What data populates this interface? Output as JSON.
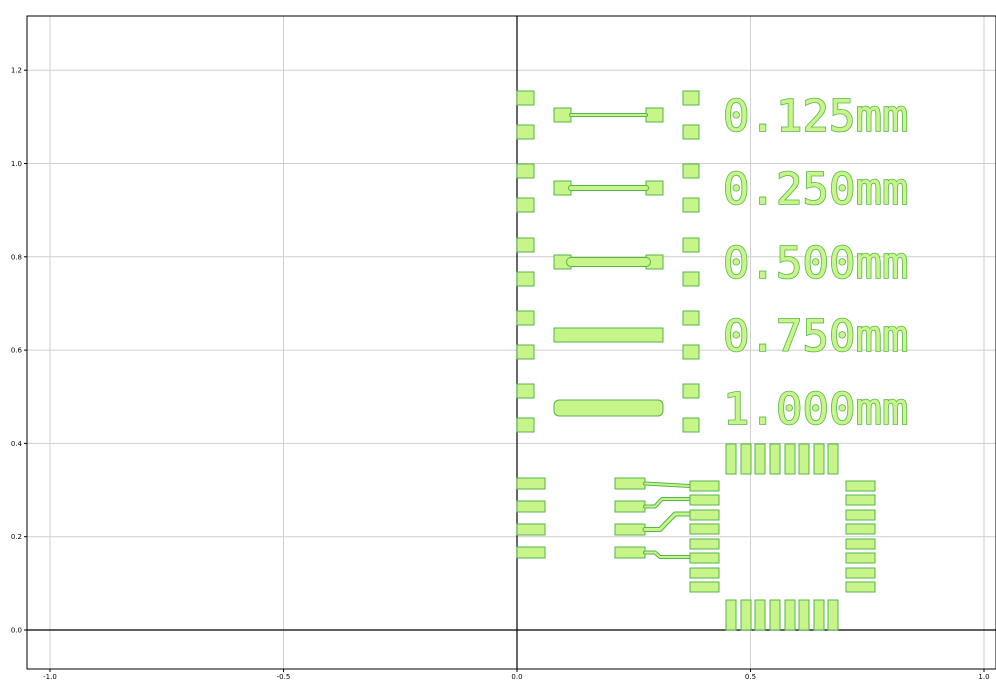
{
  "chart_data": {
    "type": "scatter",
    "title": "",
    "xlabel": "",
    "ylabel": "",
    "xlim": [
      -1.05,
      1.03
    ],
    "ylim": [
      -0.08,
      1.32
    ],
    "grid": true,
    "x_ticks": [
      "-1.0",
      "-0.5",
      "0.0",
      "0.5",
      "1.0"
    ],
    "y_ticks": [
      "0.0",
      "0.2",
      "0.4",
      "0.6",
      "0.8",
      "1.0",
      "1.2"
    ],
    "fill_color": "#c8f58a",
    "edge_color": "#55b44a",
    "labels": [
      {
        "text": "0.125mm",
        "width_mm": 0.125
      },
      {
        "text": "0.250mm",
        "width_mm": 0.25
      },
      {
        "text": "0.500mm",
        "width_mm": 0.5
      },
      {
        "text": "0.750mm",
        "width_mm": 0.75
      },
      {
        "text": "1.000mm",
        "width_mm": 1.0
      }
    ]
  }
}
